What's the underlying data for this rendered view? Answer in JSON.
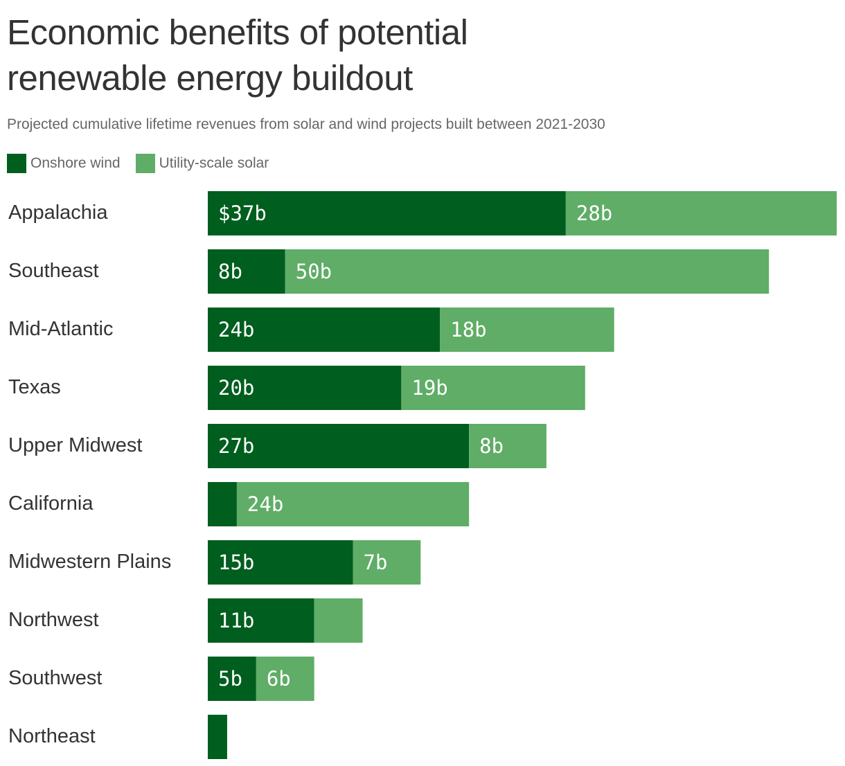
{
  "chart_data": {
    "type": "bar",
    "orientation": "horizontal",
    "stacked": true,
    "title": "Economic benefits of potential renewable energy buildout",
    "subtitle": "Projected cumulative lifetime revenues from solar and wind projects built between 2021-2030",
    "grid": false,
    "legend_position": "top-left",
    "categories": [
      "Appalachia",
      "Southeast",
      "Mid-Atlantic",
      "Texas",
      "Upper Midwest",
      "California",
      "Midwestern Plains",
      "Northwest",
      "Southwest",
      "Northeast"
    ],
    "series": [
      {
        "name": "Onshore wind",
        "color": "#005e1e",
        "values": [
          37,
          8,
          24,
          20,
          27,
          3,
          15,
          11,
          5,
          2
        ],
        "labels": [
          "$37b",
          "8b",
          "24b",
          "20b",
          "27b",
          "",
          "15b",
          "11b",
          "5b",
          ""
        ]
      },
      {
        "name": "Utility-scale solar",
        "color": "#5fad66",
        "values": [
          28,
          50,
          18,
          19,
          8,
          24,
          7,
          5,
          6,
          0
        ],
        "labels": [
          "28b",
          "50b",
          "18b",
          "19b",
          "8b",
          "24b",
          "7b",
          "",
          "6b",
          ""
        ]
      }
    ],
    "xlim": [
      0,
      65
    ]
  }
}
